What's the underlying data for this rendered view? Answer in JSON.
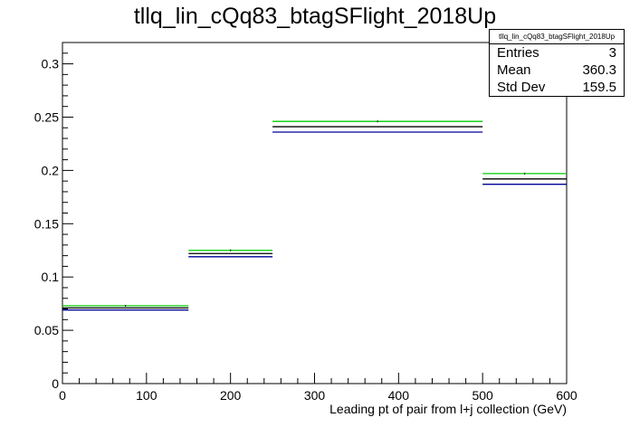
{
  "title": "tllq_lin_cQq83_btagSFlight_2018Up",
  "stats_box": {
    "name": "tllq_lin_cQq83_btagSFlight_2018Up",
    "rows": [
      {
        "label": "Entries",
        "value": "3"
      },
      {
        "label": "Mean",
        "value": "360.3"
      },
      {
        "label": "Std Dev",
        "value": "159.5"
      }
    ]
  },
  "chart_data": {
    "type": "bar",
    "title": "tllq_lin_cQq83_btagSFlight_2018Up",
    "xlabel": "Leading pt of pair from l+j collection (GeV)",
    "ylabel": "",
    "xlim": [
      0,
      600
    ],
    "ylim": [
      0,
      0.32
    ],
    "x_ticks": [
      0,
      100,
      200,
      300,
      400,
      500,
      600
    ],
    "x_tick_labels": [
      "0",
      "100",
      "200",
      "300",
      "400",
      "500",
      "600"
    ],
    "y_ticks": [
      0,
      0.05,
      0.1,
      0.15,
      0.2,
      0.25,
      0.3
    ],
    "y_tick_labels": [
      "0",
      "0.05",
      "0.1",
      "0.15",
      "0.2",
      "0.25",
      "0.3"
    ],
    "bin_edges": [
      0,
      150,
      250,
      500,
      600
    ],
    "series": [
      {
        "color": "#00cc00",
        "values": [
          0.073,
          0.125,
          0.246,
          0.197
        ]
      },
      {
        "color": "#000000",
        "values": [
          0.071,
          0.122,
          0.241,
          0.192
        ]
      },
      {
        "color": "#000099",
        "values": [
          0.069,
          0.119,
          0.236,
          0.187
        ]
      }
    ],
    "grid": false,
    "legend": "top-right"
  }
}
